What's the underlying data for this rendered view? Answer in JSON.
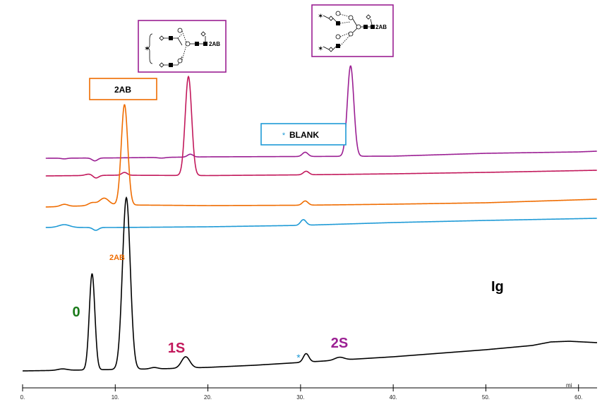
{
  "chart_data": {
    "type": "line",
    "title": "",
    "xlabel": "",
    "ylabel": "",
    "x_unit_label": "mi",
    "xlim": [
      0,
      62
    ],
    "x_ticks": [
      "0.",
      "10.",
      "20.",
      "30.",
      "40.",
      "50.",
      "60."
    ],
    "x_tick_values": [
      0,
      10,
      20,
      30,
      40,
      50,
      60
    ],
    "trace_label": "Ig",
    "series": [
      {
        "color": "#9b1f93",
        "baseline": [
          [
            2.5,
            0
          ],
          [
            10,
            0.5
          ],
          [
            20,
            2
          ],
          [
            30,
            2.5
          ],
          [
            40,
            3
          ],
          [
            50,
            7
          ],
          [
            60,
            9
          ],
          [
            62,
            10
          ]
        ],
        "peaks": [
          {
            "x": 35.4,
            "h": 128,
            "w": 0.35
          },
          {
            "x": 18.1,
            "h": 4,
            "w": 0.3
          },
          {
            "x": 30.5,
            "h": 6,
            "w": 0.3
          },
          {
            "x": 4.5,
            "h": -1,
            "w": 0.3
          }
        ],
        "dips": [
          {
            "x": 7.8,
            "d": 4,
            "w": 0.3
          },
          {
            "x": 15,
            "d": 1,
            "w": 0.4
          }
        ]
      },
      {
        "color": "#c2185b",
        "baseline": [
          [
            2.5,
            0
          ],
          [
            10,
            1
          ],
          [
            20,
            0.5
          ],
          [
            30,
            1.5
          ],
          [
            40,
            3
          ],
          [
            50,
            5
          ],
          [
            62,
            8
          ]
        ],
        "peaks": [
          {
            "x": 17.9,
            "h": 140,
            "w": 0.35
          },
          {
            "x": 11.0,
            "h": 4,
            "w": 0.3
          },
          {
            "x": 30.6,
            "h": 5,
            "w": 0.3
          },
          {
            "x": 7.2,
            "h": 2,
            "w": 0.4
          }
        ],
        "dips": [
          {
            "x": 7.9,
            "d": 4,
            "w": 0.3
          }
        ]
      },
      {
        "color": "#ef6c00",
        "baseline": [
          [
            2.5,
            0
          ],
          [
            10,
            3
          ],
          [
            20,
            2
          ],
          [
            30,
            2.5
          ],
          [
            40,
            4
          ],
          [
            50,
            6
          ],
          [
            62,
            11
          ]
        ],
        "peaks": [
          {
            "x": 11.0,
            "h": 142,
            "w": 0.35
          },
          {
            "x": 8.8,
            "h": 10,
            "w": 0.5
          },
          {
            "x": 7.5,
            "h": 4,
            "w": 0.4
          },
          {
            "x": 30.5,
            "h": 6,
            "w": 0.3
          },
          {
            "x": 4.5,
            "h": 3,
            "w": 0.4
          }
        ],
        "dips": []
      },
      {
        "color": "#1e9ad6",
        "baseline": [
          [
            2.5,
            0
          ],
          [
            10,
            0
          ],
          [
            20,
            1
          ],
          [
            30,
            3
          ],
          [
            40,
            7
          ],
          [
            50,
            10
          ],
          [
            62,
            13
          ]
        ],
        "peaks": [
          {
            "x": 4.5,
            "h": 4,
            "w": 0.6
          },
          {
            "x": 30.3,
            "h": 8,
            "w": 0.3
          }
        ],
        "dips": [
          {
            "x": 7.9,
            "d": 4,
            "w": 0.3
          }
        ]
      },
      {
        "color": "#000000",
        "baseline": [
          [
            0,
            0
          ],
          [
            5,
            1
          ],
          [
            10,
            2
          ],
          [
            15,
            3
          ],
          [
            20,
            5
          ],
          [
            25,
            8
          ],
          [
            30,
            12
          ],
          [
            35,
            16
          ],
          [
            40,
            20
          ],
          [
            45,
            25
          ],
          [
            50,
            30
          ],
          [
            55,
            36
          ],
          [
            57,
            41
          ],
          [
            59,
            42
          ],
          [
            62,
            40
          ]
        ],
        "peaks": [
          {
            "x": 7.5,
            "h": 136,
            "w": 0.3
          },
          {
            "x": 11.2,
            "h": 243,
            "w": 0.42
          },
          {
            "x": 17.6,
            "h": 16,
            "w": 0.45
          },
          {
            "x": 30.6,
            "h": 12,
            "w": 0.3
          },
          {
            "x": 34.2,
            "h": 4,
            "w": 0.5
          },
          {
            "x": 4.3,
            "h": 2,
            "w": 0.5
          },
          {
            "x": 14.2,
            "h": 2,
            "w": 0.4
          }
        ],
        "dips": []
      }
    ],
    "annotations": [
      {
        "text": "0",
        "color": "#1a7a1a"
      },
      {
        "text": "2AB",
        "color": "#ef6c00"
      },
      {
        "text": "1S",
        "color": "#c2185b"
      },
      {
        "text": "2S",
        "color": "#9b1f93"
      },
      {
        "text": "*",
        "color": "#1e9ad6"
      }
    ],
    "legend_boxes": [
      {
        "label": "2AB",
        "color": "#ef6c00"
      },
      {
        "label": "BLANK",
        "marker": "*",
        "marker_color": "#1e9ad6",
        "color": "#1e9ad6"
      }
    ],
    "glycan_structures": [
      {
        "label": "2AB",
        "color": "#9b1f93"
      },
      {
        "label": "2AB",
        "color": "#9b1f93"
      }
    ]
  }
}
